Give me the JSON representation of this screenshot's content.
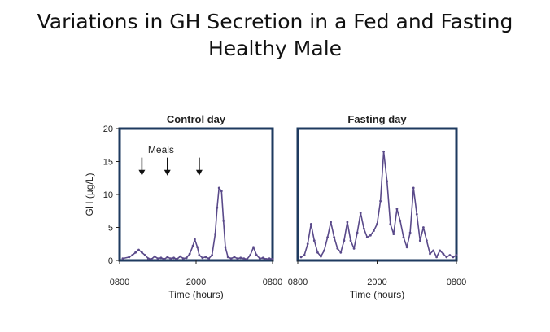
{
  "slide": {
    "title_line1": "Variations in GH Secretion in a Fed and Fasting",
    "title_line2": "Healthy Male"
  },
  "colors": {
    "series": "#5a4a8a",
    "frame": "#1e3a5f",
    "axis": "#222222"
  },
  "chart_data": [
    {
      "type": "line",
      "title": "Control day",
      "xlabel": "Time (hours)",
      "ylabel": "GH (µg/L)",
      "ylim": [
        0,
        20
      ],
      "yticks": [
        0,
        5,
        10,
        15,
        20
      ],
      "xlim": [
        8,
        32
      ],
      "xticks": [
        8,
        20,
        32
      ],
      "xtick_labels": [
        "0800",
        "2000",
        "0800"
      ],
      "annotation": {
        "text": "Meals",
        "arrows_at_x": [
          11.5,
          15.5,
          20.5
        ]
      },
      "series": [
        {
          "x": [
            8.5,
            9.5,
            10,
            10.5,
            11,
            11.5,
            12,
            12.5,
            13,
            13.5,
            14,
            14.5,
            15,
            15.5,
            16,
            16.5,
            17,
            17.5,
            18,
            18.5,
            19,
            19.5,
            19.8,
            20.2,
            20.5,
            21,
            21.5,
            22,
            22.5,
            23,
            23.3,
            23.6,
            24,
            24.3,
            24.6,
            25,
            25.5,
            26,
            26.5,
            27,
            27.5,
            28,
            28.5,
            29,
            29.5,
            30,
            30.5,
            31,
            31.5,
            32
          ],
          "y": [
            0.3,
            0.5,
            0.8,
            1.2,
            1.6,
            1.2,
            0.8,
            0.3,
            0.2,
            0.6,
            0.3,
            0.4,
            0.2,
            0.5,
            0.3,
            0.4,
            0.2,
            0.6,
            0.3,
            0.4,
            1.0,
            2.2,
            3.2,
            2.0,
            0.8,
            0.4,
            0.5,
            0.3,
            0.8,
            4.0,
            8.0,
            11.0,
            10.5,
            6.0,
            2.0,
            0.5,
            0.3,
            0.5,
            0.3,
            0.4,
            0.3,
            0.2,
            0.8,
            2.0,
            0.8,
            0.3,
            0.4,
            0.2,
            0.3,
            0.2
          ]
        }
      ]
    },
    {
      "type": "line",
      "title": "Fasting day",
      "xlabel": "Time (hours)",
      "ylabel": "",
      "ylim": [
        0,
        20
      ],
      "xlim": [
        8,
        32
      ],
      "xticks": [
        8,
        20,
        32
      ],
      "xtick_labels": [
        "0800",
        "2000",
        "0800"
      ],
      "series": [
        {
          "x": [
            8.5,
            9,
            9.5,
            10,
            10.5,
            11,
            11.5,
            12,
            12.5,
            13,
            13.5,
            14,
            14.5,
            15,
            15.5,
            16,
            16.5,
            17,
            17.5,
            18,
            18.5,
            19,
            19.5,
            20,
            20.5,
            21,
            21.5,
            22,
            22.5,
            23,
            23.5,
            24,
            24.5,
            25,
            25.5,
            26,
            26.5,
            27,
            27.5,
            28,
            28.5,
            29,
            29.5,
            30,
            30.5,
            31,
            31.5,
            32
          ],
          "y": [
            0.5,
            0.8,
            2.5,
            5.5,
            3.0,
            1.2,
            0.6,
            1.5,
            3.5,
            5.8,
            3.5,
            1.8,
            1.2,
            3.0,
            5.8,
            3.0,
            1.8,
            4.2,
            7.2,
            4.8,
            3.5,
            3.8,
            4.5,
            5.5,
            9.0,
            16.5,
            12.0,
            5.5,
            4.0,
            7.8,
            6.0,
            3.5,
            2.0,
            4.2,
            11.0,
            7.0,
            3.0,
            5.0,
            3.0,
            1.0,
            1.5,
            0.5,
            1.5,
            1.0,
            0.5,
            0.8,
            0.5,
            0.8
          ]
        }
      ]
    }
  ]
}
